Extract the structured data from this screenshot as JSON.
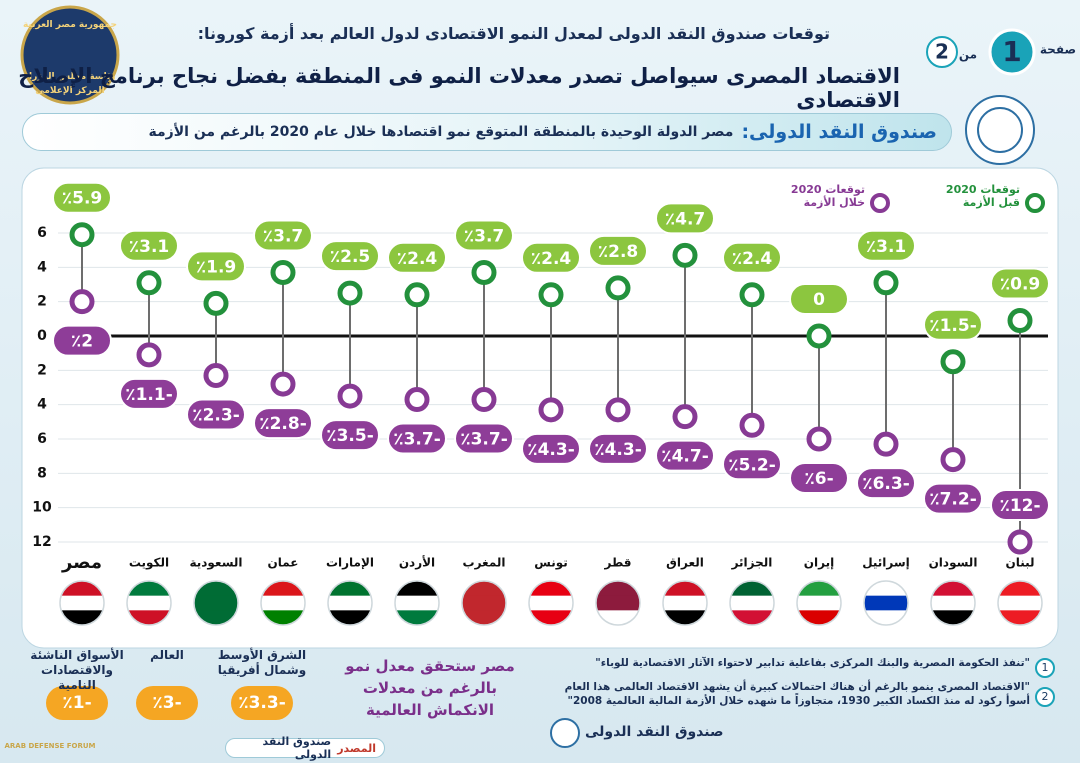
{
  "header": {
    "subtitle": "توقعات صندوق النقد الدولى لمعدل النمو الاقتصادى لدول العالم بعد أزمة كورونا:",
    "title": "الاقتصاد المصرى سيواصل تصدر معدلات النمو فى المنطقة بفضل نجاح برنامج الإصلاح الاقتصادى",
    "page_label": "صفحة",
    "page": "1",
    "of_label": "من",
    "total": "2",
    "logo": [
      "جمهورية مصر العربية",
      "رئاسة مجلس الوزراء",
      "المركز الإعلامى"
    ]
  },
  "banner": {
    "source": "صندوق النقد الدولى:",
    "text": "مصر الدولة الوحيدة بالمنطقة المتوقع نمو اقتصادها خلال عام 2020 بالرغم من الأزمة"
  },
  "chart_data": {
    "type": "dumbbell",
    "categories": [
      "مصر",
      "الكويت",
      "السعودية",
      "عمان",
      "الإمارات",
      "الأردن",
      "المغرب",
      "تونس",
      "قطر",
      "العراق",
      "الجزائر",
      "إيران",
      "إسرائيل",
      "السودان",
      "لبنان"
    ],
    "series": [
      {
        "name": "توقعات 2020 قبل الأزمة",
        "color": "#23913c",
        "values": [
          5.9,
          3.1,
          1.9,
          3.7,
          2.5,
          2.4,
          3.7,
          2.4,
          2.8,
          4.7,
          2.4,
          0,
          3.1,
          -1.5,
          0.9
        ],
        "value_labels": [
          "٪5.9",
          "٪3.1",
          "٪1.9",
          "٪3.7",
          "٪2.5",
          "٪2.4",
          "٪3.7",
          "٪2.4",
          "٪2.8",
          "٪4.7",
          "٪2.4",
          "0",
          "٪3.1",
          "٪1.5-",
          "٪0.9"
        ]
      },
      {
        "name": "توقعات 2020 خلال الأزمة",
        "color": "#873a94",
        "values": [
          2,
          -1.1,
          -2.3,
          -2.8,
          -3.5,
          -3.7,
          -3.7,
          -4.3,
          -4.3,
          -4.7,
          -5.2,
          -6,
          -6.3,
          -7.2,
          -12
        ],
        "value_labels": [
          "٪2",
          "٪1.1-",
          "٪2.3-",
          "٪2.8-",
          "٪3.5-",
          "٪3.7-",
          "٪3.7-",
          "٪4.3-",
          "٪4.3-",
          "٪4.7-",
          "٪5.2-",
          "٪6-",
          "٪6.3-",
          "٪7.2-",
          "٪12-"
        ]
      }
    ],
    "ylim": [
      -12,
      6
    ],
    "yticks": [
      6,
      4,
      2,
      0,
      {
        "value": -2,
        "label": "2"
      },
      {
        "value": -4,
        "label": "4"
      },
      {
        "value": -6,
        "label": "6"
      },
      {
        "value": -8,
        "label": "8"
      },
      {
        "value": -10,
        "label": "10"
      },
      {
        "value": -12,
        "label": "12"
      }
    ],
    "grid": true
  },
  "regions": [
    {
      "name": "الأسواق الناشئة والاقتصادات النامية",
      "label": "٪1-"
    },
    {
      "name": "العالم",
      "label": "٪3-"
    },
    {
      "name": "الشرق الأوسط وشمال أفريقيا",
      "label": "٪3.3-"
    }
  ],
  "highlight": "مصر ستحقق معدل نمو بالرغم من معدلات الانكماش العالمية",
  "quotes": [
    {
      "number": "1",
      "text": "\"تنفذ الحكومة المصرية والبنك المركزى بفاعلية تدابير لاحتواء الآثار الاقتصادية للوباء\""
    },
    {
      "number": "2",
      "text": "\"الاقتصاد المصرى ينمو بالرغم أن هناك احتمالات كبيرة أن يشهد الاقتصاد العالمى هذا العام أسوأ ركود له منذ الكساد الكبير 1930، متجاوزاً ما شهده خلال الأزمة المالية العالمية 2008\""
    }
  ],
  "quote_source": "صندوق النقد الدولى",
  "source": {
    "label": "المصدر",
    "text": "صندوق النقد الدولى"
  },
  "watermark": "ARAB DEFENSE FORUM"
}
